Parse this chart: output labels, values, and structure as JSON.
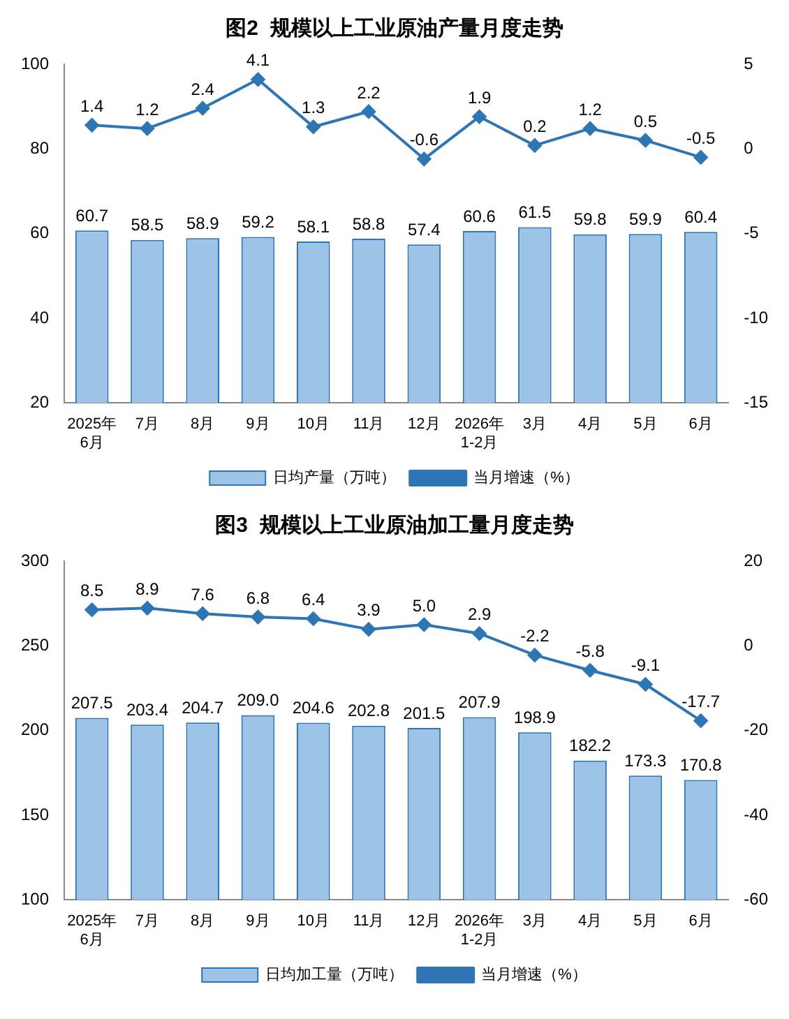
{
  "chart_data": [
    {
      "type": "bar",
      "title": "图2  规模以上工业原油产量月度走势",
      "categories": [
        "2025年\n6月",
        "7月",
        "8月",
        "9月",
        "10月",
        "11月",
        "12月",
        "2026年\n1-2月",
        "3月",
        "4月",
        "5月",
        "6月"
      ],
      "series": [
        {
          "name": "日均产量（万吨）",
          "color": "#9dc3e6",
          "values": [
            60.7,
            58.5,
            58.9,
            59.2,
            58.1,
            58.8,
            57.4,
            60.6,
            61.5,
            59.8,
            59.9,
            60.4
          ]
        },
        {
          "name": "当月增速（%）",
          "type": "line",
          "axis": "y2",
          "color": "#2e75b6",
          "values": [
            1.4,
            1.2,
            2.4,
            4.1,
            1.3,
            2.2,
            -0.6,
            1.9,
            0.2,
            1.2,
            0.5,
            -0.5
          ]
        }
      ],
      "ylim": [
        20,
        100
      ],
      "yticks": [
        20,
        40,
        60,
        80,
        100
      ],
      "y2lim": [
        -15,
        5
      ],
      "y2ticks": [
        -15,
        -10,
        -5,
        0,
        5
      ],
      "data_labels": true,
      "legend": "bottom",
      "marker": "diamond",
      "grid": false
    },
    {
      "type": "bar",
      "title": "图3  规模以上工业原油加工量月度走势",
      "categories": [
        "2025年\n6月",
        "7月",
        "8月",
        "9月",
        "10月",
        "11月",
        "12月",
        "2026年\n1-2月",
        "3月",
        "4月",
        "5月",
        "6月"
      ],
      "series": [
        {
          "name": "日均加工量（万吨）",
          "color": "#9dc3e6",
          "values": [
            207.5,
            203.4,
            204.7,
            209.0,
            204.6,
            202.8,
            201.5,
            207.9,
            198.9,
            182.2,
            173.3,
            170.8
          ],
          "value_labels": [
            "207.5",
            "203.4",
            "204.7",
            "209.0",
            "204.6",
            "202.8",
            "201.5",
            "207.9",
            "198.9",
            "182.2",
            "173.3",
            "170.8"
          ]
        },
        {
          "name": "当月增速（%）",
          "type": "line",
          "axis": "y2",
          "color": "#2e75b6",
          "values": [
            8.5,
            8.9,
            7.6,
            6.8,
            6.4,
            3.9,
            5.0,
            2.9,
            -2.2,
            -5.8,
            -9.1,
            -17.7
          ],
          "value_labels": [
            "8.5",
            "8.9",
            "7.6",
            "6.8",
            "6.4",
            "3.9",
            "5.0",
            "2.9",
            "-2.2",
            "-5.8",
            "-9.1",
            "-17.7"
          ]
        }
      ],
      "ylim": [
        100,
        300
      ],
      "yticks": [
        100,
        150,
        200,
        250,
        300
      ],
      "y2lim": [
        -60,
        20
      ],
      "y2ticks": [
        -60,
        -40,
        -20,
        0,
        20
      ],
      "data_labels": true,
      "legend": "bottom",
      "marker": "diamond",
      "grid": false
    }
  ]
}
